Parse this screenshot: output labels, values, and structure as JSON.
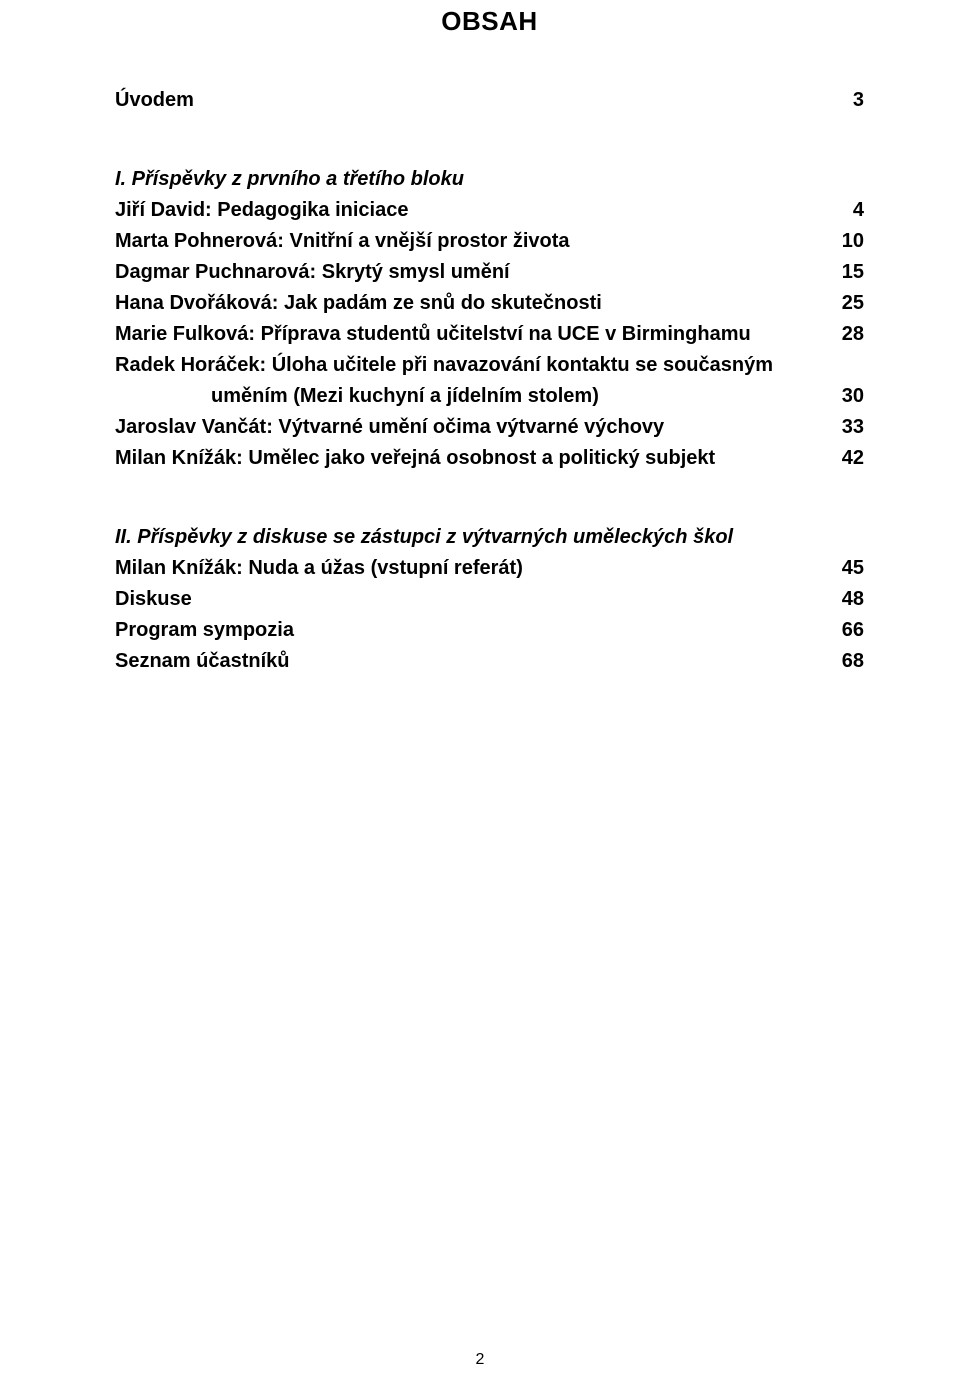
{
  "title": "OBSAH",
  "section1": {
    "intro_label": "Úvodem",
    "intro_page": "3",
    "heading": "I. Příspěvky z prvního a třetího bloku",
    "items": [
      {
        "label": "Jiří David: Pedagogika iniciace",
        "page": "4"
      },
      {
        "label": "Marta Pohnerová: Vnitřní a vnější prostor života",
        "page": "10"
      },
      {
        "label": "Dagmar Puchnarová: Skrytý smysl umění",
        "page": "15"
      },
      {
        "label": "Hana Dvořáková: Jak padám ze snů do skutečnosti",
        "page": "25"
      },
      {
        "label": "Marie Fulková: Příprava studentů učitelství na UCE v Birminghamu",
        "page": "28"
      },
      {
        "label_a": "Radek Horáček: Úloha učitele při navazování kontaktu se současným",
        "label_b": "uměním (Mezi kuchyní a jídelním stolem)",
        "page": "30"
      },
      {
        "label": "Jaroslav Vančát: Výtvarné umění očima výtvarné výchovy",
        "page": "33"
      },
      {
        "label": "Milan Knížák: Umělec jako veřejná osobnost a politický subjekt",
        "page": "42"
      }
    ]
  },
  "section2": {
    "heading": "II. Příspěvky z diskuse se zástupci z výtvarných uměleckých škol",
    "items": [
      {
        "label": "Milan Knížák: Nuda a úžas (vstupní referát)",
        "page": "45"
      },
      {
        "label": "Diskuse",
        "page": "48"
      },
      {
        "label": "Program sympozia",
        "page": "66"
      },
      {
        "label": "Seznam účastníků",
        "page": "68"
      }
    ]
  },
  "footer_page_number": "2"
}
